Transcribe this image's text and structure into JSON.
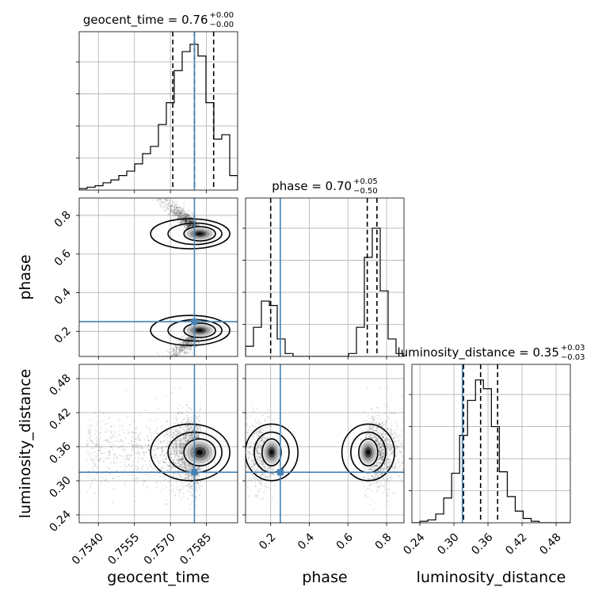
{
  "chart_data": {
    "type": "corner",
    "parameters": [
      "geocent_time",
      "phase",
      "luminosity_distance"
    ],
    "ranges": {
      "geocent_time": [
        0.7532,
        0.7598
      ],
      "phase": [
        0.07,
        0.89
      ],
      "luminosity_distance": [
        0.226,
        0.505
      ]
    },
    "truth": {
      "geocent_time": 0.758,
      "phase": 0.25,
      "luminosity_distance": 0.315
    },
    "titles": [
      {
        "param": "geocent_time",
        "text": "geocent_time = 0.76",
        "sup": "+0.00",
        "sub": "−0.00"
      },
      {
        "param": "phase",
        "text": "phase = 0.70",
        "sup": "+0.05",
        "sub": "−0.50"
      },
      {
        "param": "luminosity_distance",
        "text": "luminosity_distance = 0.35",
        "sup": "+0.03",
        "sub": "−0.03"
      }
    ],
    "axis_labels": {
      "geocent_time": "geocent_time",
      "phase": "phase",
      "luminosity_distance": "luminosity_distance"
    },
    "ticks": {
      "geocent_time": {
        "values": [
          0.754,
          0.7555,
          0.757,
          0.7585
        ],
        "labels": [
          "0.7540",
          "0.7555",
          "0.7570",
          "0.7585"
        ]
      },
      "phase": {
        "values": [
          0.2,
          0.4,
          0.6,
          0.8
        ],
        "labels": [
          "0.2",
          "0.4",
          "0.6",
          "0.8"
        ]
      },
      "luminosity_distance": {
        "values": [
          0.24,
          0.3,
          0.36,
          0.42,
          0.48
        ],
        "labels": [
          "0.24",
          "0.30",
          "0.36",
          "0.42",
          "0.48"
        ]
      }
    },
    "quantiles": {
      "geocent_time": [
        0.7571,
        0.758,
        0.7588
      ],
      "phase": [
        0.2,
        0.7,
        0.75
      ],
      "luminosity_distance": [
        0.317,
        0.347,
        0.377
      ]
    },
    "histograms": {
      "geocent_time": {
        "edges": [
          0.7532,
          0.75353,
          0.75386,
          0.75419,
          0.75452,
          0.75485,
          0.75518,
          0.75551,
          0.75584,
          0.75617,
          0.7565,
          0.75683,
          0.75716,
          0.75749,
          0.75782,
          0.75815,
          0.75848,
          0.75881,
          0.75914,
          0.75947,
          0.7598
        ],
        "counts": [
          0.01,
          0.02,
          0.03,
          0.05,
          0.07,
          0.1,
          0.13,
          0.18,
          0.25,
          0.3,
          0.45,
          0.6,
          0.82,
          0.95,
          1.0,
          0.92,
          0.6,
          0.35,
          0.38,
          0.1
        ]
      },
      "phase": {
        "edges": [
          0.07,
          0.111,
          0.152,
          0.193,
          0.234,
          0.275,
          0.316,
          0.357,
          0.398,
          0.439,
          0.48,
          0.521,
          0.562,
          0.603,
          0.644,
          0.685,
          0.726,
          0.767,
          0.808,
          0.849,
          0.89
        ],
        "counts": [
          0.07,
          0.2,
          0.38,
          0.35,
          0.12,
          0.02,
          0.0,
          0.0,
          0.0,
          0.0,
          0.0,
          0.0,
          0.0,
          0.02,
          0.2,
          0.68,
          0.88,
          0.45,
          0.12,
          0.02
        ]
      },
      "luminosity_distance": {
        "edges": [
          0.226,
          0.24,
          0.254,
          0.268,
          0.282,
          0.296,
          0.31,
          0.324,
          0.338,
          0.352,
          0.366,
          0.38,
          0.394,
          0.408,
          0.422,
          0.436,
          0.45,
          0.464,
          0.478,
          0.492,
          0.505
        ],
        "counts": [
          0.0,
          0.01,
          0.02,
          0.06,
          0.17,
          0.34,
          0.6,
          0.84,
          0.98,
          0.92,
          0.66,
          0.35,
          0.18,
          0.08,
          0.03,
          0.01,
          0.0,
          0.0,
          0.0,
          0.0
        ]
      }
    },
    "hist_ymax": 1.0,
    "posterior_modes": [
      {
        "geocent_time": 0.75822,
        "phase": 0.705,
        "luminosity_distance": 0.35
      },
      {
        "geocent_time": 0.75822,
        "phase": 0.205,
        "luminosity_distance": 0.35
      }
    ],
    "grid": true,
    "truth_color": "#4682b4",
    "hist_color": "#000000",
    "grid_color": "#b0b0b0"
  }
}
